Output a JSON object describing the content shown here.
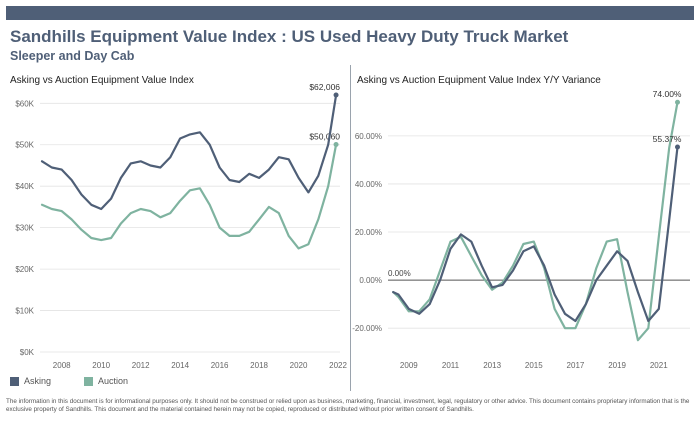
{
  "header": {
    "title": "Sandhills Equipment Value Index : US Used Heavy Duty Truck Market",
    "subtitle": "Sleeper and Day Cab"
  },
  "colors": {
    "asking": "#4f5f77",
    "auction": "#7fb3a0",
    "bar": "#4f5f77"
  },
  "legend": {
    "asking_label": "Asking",
    "auction_label": "Auction"
  },
  "disclaimer": "The information in this document is for informational purposes only. It should not be construed or relied upon as business, marketing, financial, investment, legal, regulatory or other advice. This document contains proprietary information that is the exclusive property of Sandhills. This document and the material contained herein may not be copied, reproduced or distributed without prior written consent of Sandhills.",
  "chart_data": [
    {
      "type": "line",
      "title": "Asking vs Auction Equipment Value Index",
      "xlim": [
        2006.9,
        2022.1
      ],
      "ylim": [
        0,
        62000
      ],
      "x_ticks": [
        2008,
        2010,
        2012,
        2014,
        2016,
        2018,
        2020,
        2022
      ],
      "y_ticks": [
        0,
        10000,
        20000,
        30000,
        40000,
        50000,
        60000
      ],
      "y_tick_labels": [
        "$0K",
        "$10K",
        "$20K",
        "$30K",
        "$40K",
        "$50K",
        "$60K"
      ],
      "grid": "horizontal",
      "series": [
        {
          "name": "Asking",
          "x": [
            2007.0,
            2007.5,
            2008.0,
            2008.5,
            2009.0,
            2009.5,
            2010.0,
            2010.5,
            2011.0,
            2011.5,
            2012.0,
            2012.5,
            2013.0,
            2013.5,
            2014.0,
            2014.5,
            2015.0,
            2015.5,
            2016.0,
            2016.5,
            2017.0,
            2017.5,
            2018.0,
            2018.5,
            2019.0,
            2019.5,
            2020.0,
            2020.5,
            2021.0,
            2021.5,
            2021.9
          ],
          "y": [
            46000,
            44500,
            44000,
            41500,
            38000,
            35500,
            34500,
            37000,
            42000,
            45500,
            46000,
            45000,
            44500,
            47000,
            51500,
            52500,
            53000,
            50000,
            44500,
            41500,
            41000,
            43000,
            42000,
            44000,
            47000,
            46500,
            42000,
            38500,
            42500,
            50000,
            62006
          ],
          "end_label": "$62,006"
        },
        {
          "name": "Auction",
          "x": [
            2007.0,
            2007.5,
            2008.0,
            2008.5,
            2009.0,
            2009.5,
            2010.0,
            2010.5,
            2011.0,
            2011.5,
            2012.0,
            2012.5,
            2013.0,
            2013.5,
            2014.0,
            2014.5,
            2015.0,
            2015.5,
            2016.0,
            2016.5,
            2017.0,
            2017.5,
            2018.0,
            2018.5,
            2019.0,
            2019.5,
            2020.0,
            2020.5,
            2021.0,
            2021.5,
            2021.9
          ],
          "y": [
            35500,
            34500,
            34000,
            32000,
            29500,
            27500,
            27000,
            27500,
            31000,
            33500,
            34500,
            34000,
            32500,
            33500,
            36500,
            39000,
            39500,
            35500,
            30000,
            28000,
            28000,
            29000,
            32000,
            35000,
            33500,
            28000,
            25000,
            26000,
            32000,
            40000,
            50060
          ],
          "end_label": "$50,060"
        }
      ]
    },
    {
      "type": "line",
      "title": "Asking vs Auction Equipment Value Index Y/Y Variance",
      "xlim": [
        2008.0,
        2022.5
      ],
      "ylim": [
        -27,
        77
      ],
      "x_ticks": [
        2009,
        2011,
        2013,
        2015,
        2017,
        2019,
        2021
      ],
      "y_ticks": [
        -20,
        0,
        20,
        40,
        60
      ],
      "y_tick_labels": [
        "-20.00%",
        "0.00%",
        "20.00%",
        "40.00%",
        "60.00%"
      ],
      "grid": "horizontal",
      "zero_line_label": "0.00%",
      "series": [
        {
          "name": "Asking",
          "x": [
            2008.25,
            2008.5,
            2009.0,
            2009.5,
            2010.0,
            2010.5,
            2011.0,
            2011.5,
            2012.0,
            2012.5,
            2013.0,
            2013.5,
            2014.0,
            2014.5,
            2015.0,
            2015.5,
            2016.0,
            2016.5,
            2017.0,
            2017.5,
            2018.0,
            2018.5,
            2019.0,
            2019.5,
            2020.0,
            2020.5,
            2021.0,
            2021.5,
            2021.9
          ],
          "y": [
            -5,
            -6,
            -12,
            -14,
            -10,
            0,
            13,
            19,
            16,
            6,
            -3,
            -2,
            4,
            12,
            14,
            6,
            -6,
            -14,
            -17,
            -10,
            0,
            6,
            12,
            8,
            -5,
            -17,
            -12,
            25,
            55.37
          ],
          "end_label": "55.37%"
        },
        {
          "name": "Auction",
          "x": [
            2008.25,
            2008.5,
            2009.0,
            2009.5,
            2010.0,
            2010.5,
            2011.0,
            2011.5,
            2012.0,
            2012.5,
            2013.0,
            2013.5,
            2014.0,
            2014.5,
            2015.0,
            2015.5,
            2016.0,
            2016.5,
            2017.0,
            2017.5,
            2018.0,
            2018.5,
            2019.0,
            2019.5,
            2020.0,
            2020.5,
            2021.0,
            2021.5,
            2021.9
          ],
          "y": [
            -5,
            -7,
            -13,
            -13,
            -8,
            4,
            16,
            18,
            10,
            2,
            -4,
            -1,
            6,
            15,
            16,
            5,
            -12,
            -20,
            -20,
            -10,
            5,
            16,
            17,
            -5,
            -25,
            -20,
            18,
            55,
            74.0
          ],
          "end_label": "74.00%"
        }
      ]
    }
  ]
}
